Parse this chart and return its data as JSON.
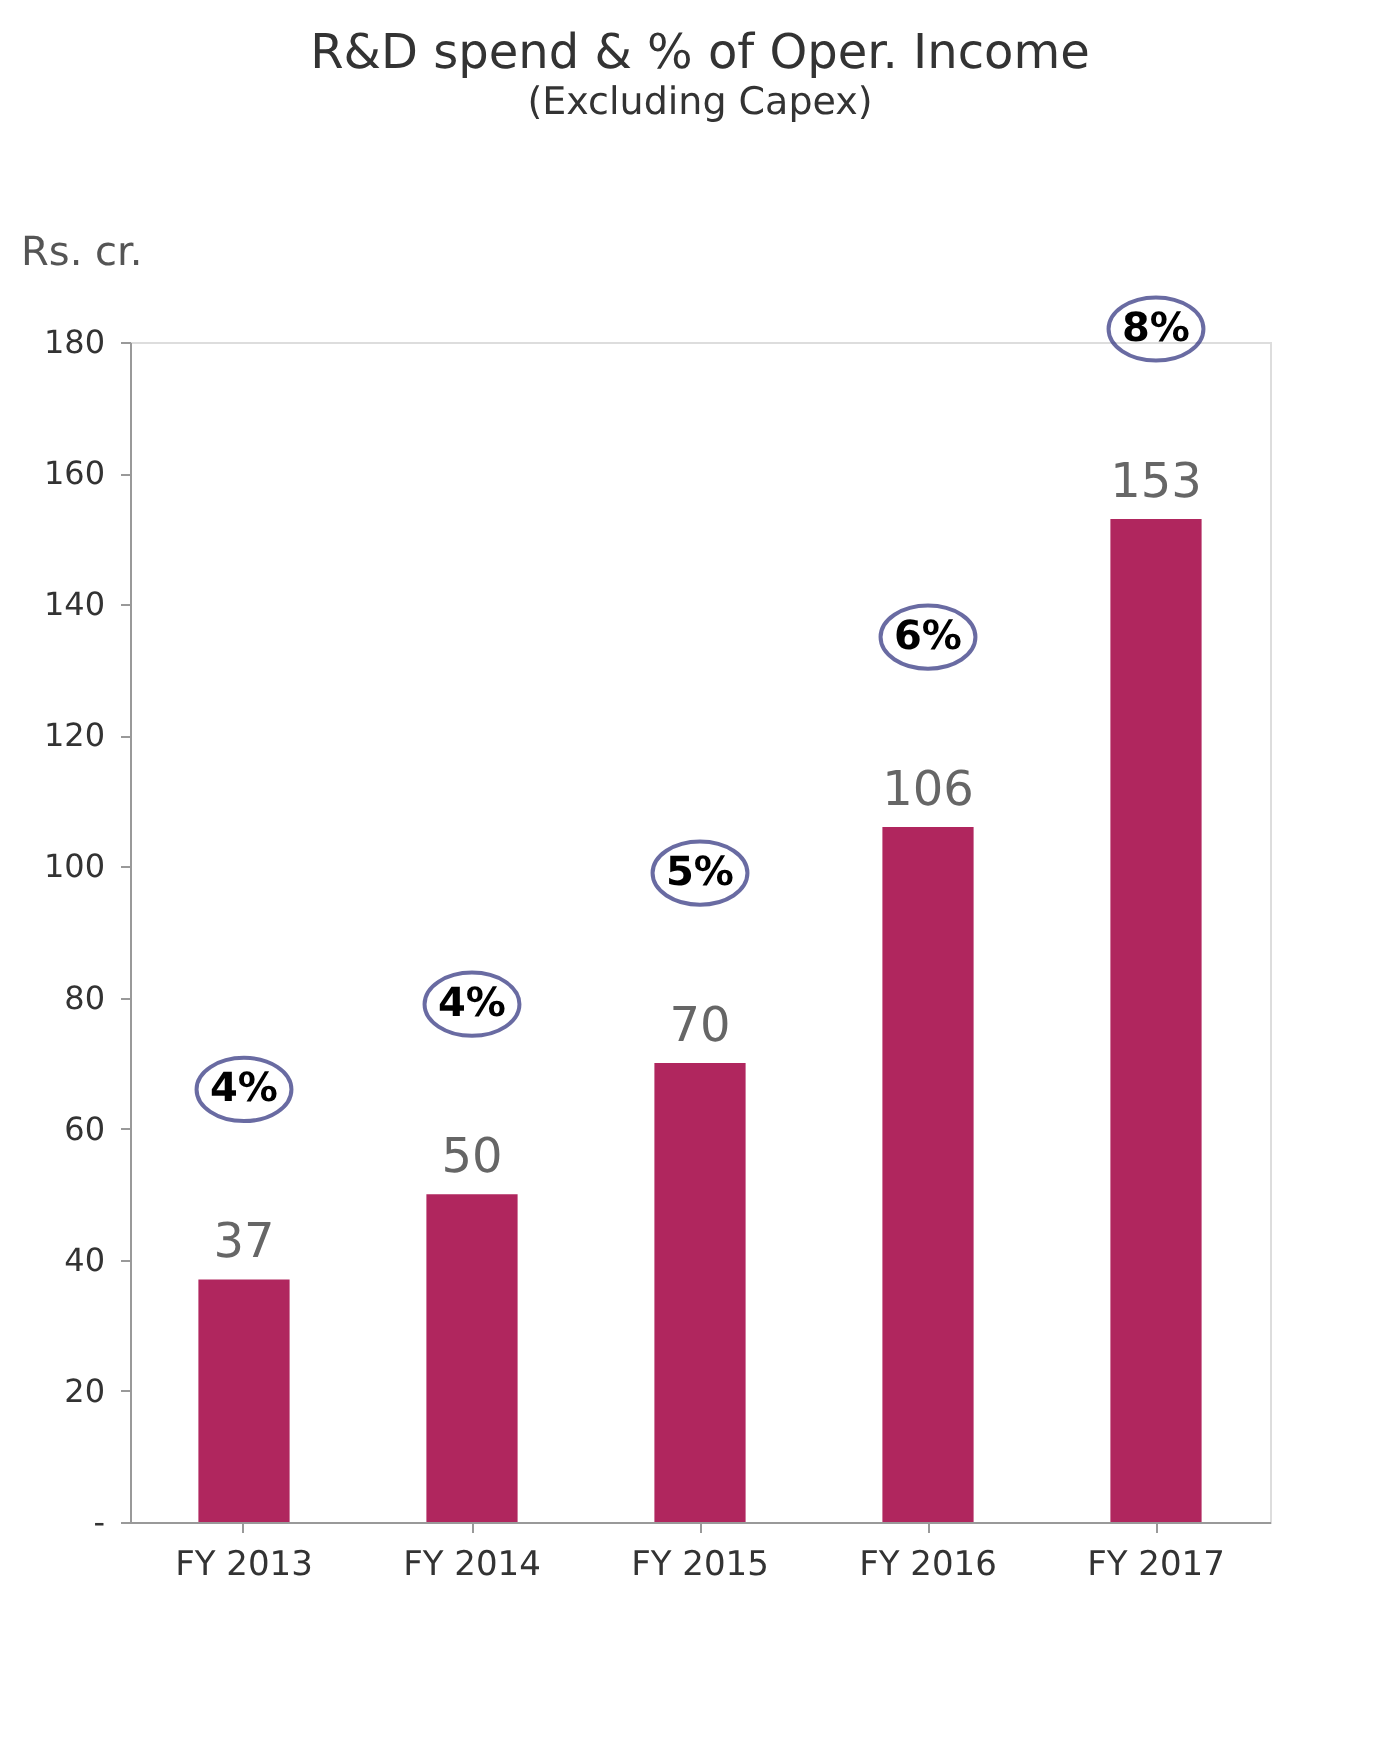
{
  "chart_data": {
    "type": "bar",
    "title": "R&D spend & % of Oper. Income",
    "subtitle": "(Excluding Capex)",
    "ylabel": "Rs. cr.",
    "categories": [
      "FY 2013",
      "FY 2014",
      "FY 2015",
      "FY 2016",
      "FY 2017"
    ],
    "values": [
      37,
      50,
      70,
      106,
      153
    ],
    "color": "#b0265e",
    "data_labels": true,
    "ylim": [
      0,
      180
    ],
    "yticks": [
      {
        "value": 0,
        "label": "-"
      },
      20,
      40,
      60,
      80,
      100,
      120,
      140,
      160,
      180
    ],
    "grid": false,
    "annotations": [
      "4%",
      "4%",
      "5%",
      "6%",
      "8%"
    ]
  }
}
